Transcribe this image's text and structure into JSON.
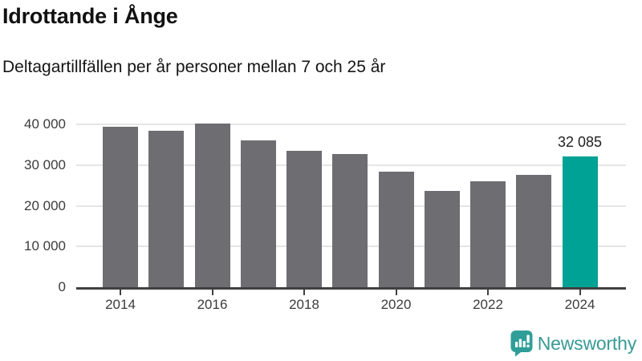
{
  "header": {
    "title": "Idrottande i Ånge",
    "subtitle": "Deltagartillfällen per år personer mellan 7 och 25 år"
  },
  "chart_data": {
    "type": "bar",
    "title": "Idrottande i Ånge",
    "subtitle": "Deltagartillfällen per år personer mellan 7 och 25 år",
    "categories": [
      "2014",
      "2015",
      "2016",
      "2017",
      "2018",
      "2019",
      "2020",
      "2021",
      "2022",
      "2023",
      "2024"
    ],
    "values": [
      39500,
      38400,
      40100,
      36100,
      33500,
      32800,
      28400,
      23700,
      26000,
      27600,
      32085
    ],
    "xlabel": "",
    "ylabel": "",
    "ylim": [
      0,
      42000
    ],
    "grid": "horizontal",
    "legend": "none",
    "yticks": [
      {
        "value": 0,
        "label": "0"
      },
      {
        "value": 10000,
        "label": "10 000"
      },
      {
        "value": 20000,
        "label": "20 000"
      },
      {
        "value": 30000,
        "label": "30 000"
      },
      {
        "value": 40000,
        "label": "40 000"
      }
    ],
    "xtick_labels": [
      "2014",
      "2016",
      "2018",
      "2020",
      "2022",
      "2024"
    ],
    "highlight": {
      "index": 10,
      "label": "32 085"
    },
    "colors": {
      "bar": "#6d6d72",
      "highlight": "#00a296",
      "gridline": "#e5e5e5",
      "axis_line": "#404040",
      "tick_text": "#3c3c3c",
      "value_label": "#222222"
    }
  },
  "footer": {
    "brand": "Newsworthy",
    "logo_icon": "newsworthy-speech-bubble-bar-chart",
    "brand_color": "#389a95",
    "logo_fill": "#2f9e98"
  }
}
